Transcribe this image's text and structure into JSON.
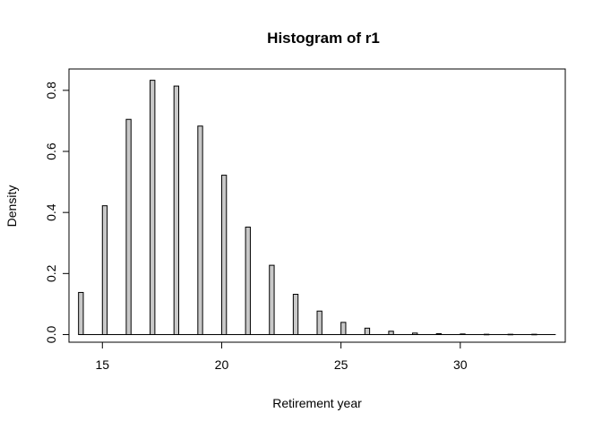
{
  "chart_data": {
    "type": "bar",
    "title": "Histogram of r1",
    "xlabel": "Retirement year",
    "ylabel": "Density",
    "xlim": [
      13.6,
      34.4
    ],
    "ylim": [
      -0.025,
      0.87
    ],
    "xticks": [
      15,
      20,
      25,
      30
    ],
    "xtick_labels": [
      "15",
      "20",
      "25",
      "30"
    ],
    "yticks": [
      0.0,
      0.2,
      0.4,
      0.6,
      0.8
    ],
    "ytick_labels": [
      "0.0",
      "0.2",
      "0.4",
      "0.6",
      "0.8"
    ],
    "bar_width": 0.2,
    "x": [
      14,
      15,
      16,
      17,
      18,
      19,
      20,
      21,
      22,
      23,
      24,
      25,
      26,
      27,
      28,
      29,
      30,
      31,
      32,
      33
    ],
    "values": [
      0.138,
      0.422,
      0.705,
      0.833,
      0.814,
      0.683,
      0.522,
      0.352,
      0.227,
      0.132,
      0.077,
      0.04,
      0.021,
      0.011,
      0.005,
      0.003,
      0.002,
      0.001,
      0.001,
      0.001
    ],
    "baseline_range": [
      14,
      34
    ],
    "bar_fill": "#c8c8c8",
    "bar_stroke": "#000000",
    "grid": false,
    "legend": "none"
  }
}
